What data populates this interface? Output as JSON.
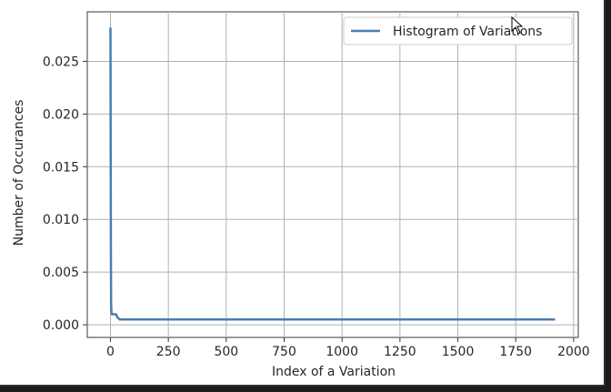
{
  "chart_data": {
    "type": "line",
    "title": "",
    "xlabel": "Index of a Variation",
    "ylabel": "Number of Occurances",
    "xlim": [
      -100,
      2020
    ],
    "ylim": [
      -0.0012,
      0.0297
    ],
    "xticks": [
      0,
      250,
      500,
      750,
      1000,
      1250,
      1500,
      1750,
      2000
    ],
    "xtick_labels": [
      "0",
      "250",
      "500",
      "750",
      "1000",
      "1250",
      "1500",
      "1750",
      "2000"
    ],
    "yticks": [
      0.0,
      0.005,
      0.01,
      0.015,
      0.02,
      0.025
    ],
    "ytick_labels": [
      "0.000",
      "0.005",
      "0.010",
      "0.015",
      "0.020",
      "0.025"
    ],
    "grid": true,
    "legend_position": "top-right",
    "series": [
      {
        "name": "Histogram of Variations",
        "color": "#4a7ead",
        "x": [
          0,
          1,
          2,
          3,
          4,
          5,
          6,
          8,
          10,
          15,
          20,
          25,
          30,
          35,
          40,
          60,
          100,
          200,
          500,
          1000,
          1500,
          1920
        ],
        "y": [
          0.0282,
          0.018,
          0.006,
          0.002,
          0.0013,
          0.0011,
          0.001,
          0.001,
          0.001,
          0.001,
          0.001,
          0.001,
          0.0007,
          0.0006,
          0.0005,
          0.0005,
          0.0005,
          0.0005,
          0.0005,
          0.0005,
          0.0005,
          0.0005
        ]
      }
    ]
  },
  "icons": {
    "cursor": "mouse-pointer-icon"
  }
}
